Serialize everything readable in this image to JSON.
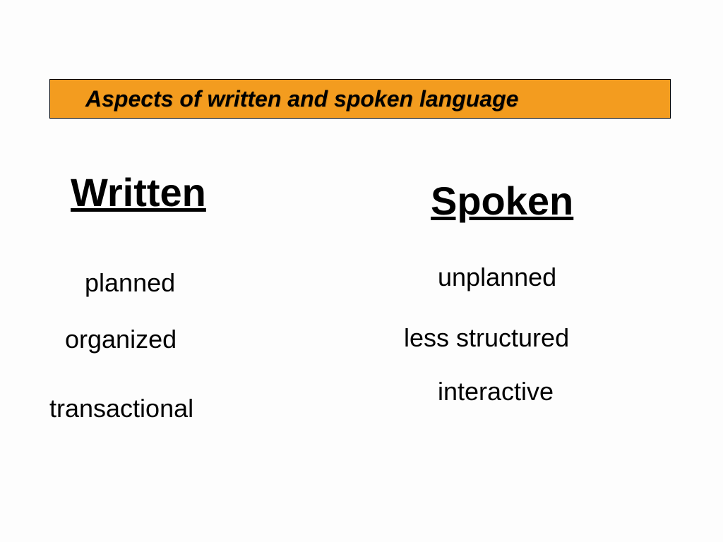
{
  "slide": {
    "title": "Aspects of written and spoken language",
    "title_bar": {
      "background_color": "#f39c1f",
      "border_color": "#000000",
      "font_family": "Comic Sans MS",
      "font_size_pt": 24,
      "italic": true,
      "bold": true
    },
    "background_color": "#fdfdfd",
    "columns": {
      "written": {
        "heading": "Written",
        "heading_style": {
          "font_family": "Arial",
          "font_size_pt": 42,
          "bold": true,
          "underline": true
        },
        "items": [
          "planned",
          "organized",
          "transactional"
        ],
        "item_style": {
          "font_family": "Arial",
          "font_size_pt": 27,
          "color": "#000000"
        }
      },
      "spoken": {
        "heading": "Spoken",
        "heading_style": {
          "font_family": "Arial",
          "font_size_pt": 42,
          "bold": true,
          "underline": true
        },
        "items": [
          "unplanned",
          "less structured",
          "interactive"
        ],
        "item_style": {
          "font_family": "Arial",
          "font_size_pt": 27,
          "color": "#000000"
        }
      }
    }
  }
}
